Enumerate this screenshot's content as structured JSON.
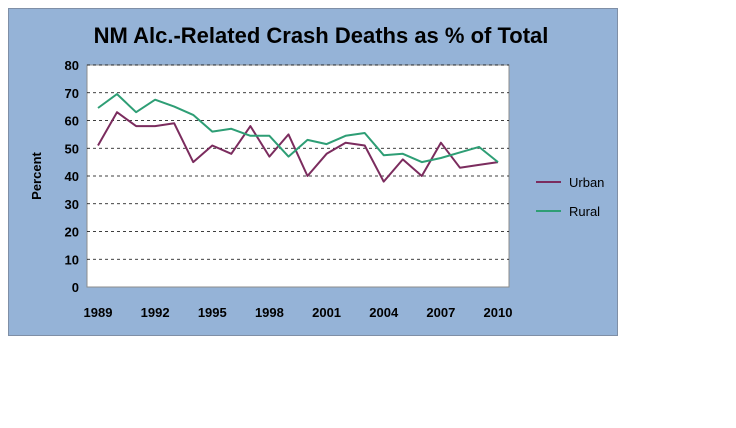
{
  "chart_data": {
    "type": "line",
    "title": "NM Alc.-Related Crash Deaths as % of Total",
    "xlabel": "",
    "ylabel": "Percent",
    "x": [
      1989,
      1990,
      1991,
      1992,
      1993,
      1994,
      1995,
      1996,
      1997,
      1998,
      1999,
      2000,
      2001,
      2002,
      2003,
      2004,
      2005,
      2006,
      2007,
      2008,
      2009,
      2010
    ],
    "x_tick_labels": [
      "1989",
      "1992",
      "1995",
      "1998",
      "2001",
      "2004",
      "2007",
      "2010"
    ],
    "y_tick_labels": [
      "0",
      "10",
      "20",
      "30",
      "40",
      "50",
      "60",
      "70",
      "80"
    ],
    "ylim": [
      0,
      80
    ],
    "grid": "horizontal dashed",
    "legend_position": "right",
    "series": [
      {
        "name": "Urban",
        "color": "#7b2c5e",
        "values": [
          51,
          63,
          58,
          58,
          59,
          45,
          51,
          48,
          58,
          47,
          55,
          40,
          48,
          52,
          51,
          38,
          46,
          40,
          52,
          43,
          44,
          45
        ]
      },
      {
        "name": "Rural",
        "color": "#2e9e75",
        "values": [
          64.5,
          69.5,
          63,
          67.5,
          65,
          62,
          56,
          57,
          54.5,
          54.5,
          47,
          53,
          51.5,
          54.5,
          55.5,
          47.5,
          48,
          45,
          46.5,
          48.5,
          50.5,
          45
        ]
      }
    ]
  }
}
